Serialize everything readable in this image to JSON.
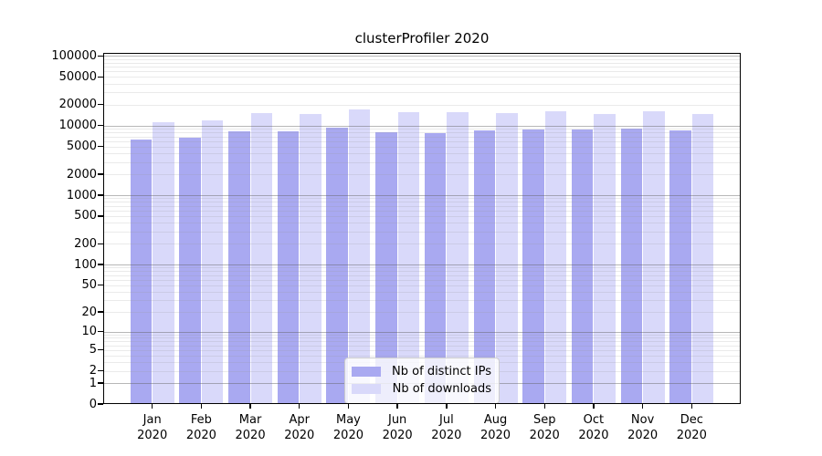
{
  "title": "clusterProfiler 2020",
  "colors": {
    "distinct_ips_bar": "#a9a9f1",
    "downloads_bar": "#d9d9fa",
    "axis": "#000000",
    "legend_border": "#cccccc"
  },
  "legend": {
    "items": [
      {
        "label": "Nb of distinct IPs",
        "color": "#a9a9f1"
      },
      {
        "label": "Nb of downloads",
        "color": "#d9d9fa"
      }
    ]
  },
  "chart_data": {
    "type": "bar",
    "title": "clusterProfiler 2020",
    "categories": [
      "Jan 2020",
      "Feb 2020",
      "Mar 2020",
      "Apr 2020",
      "May 2020",
      "Jun 2020",
      "Jul 2020",
      "Aug 2020",
      "Sep 2020",
      "Oct 2020",
      "Nov 2020",
      "Dec 2020"
    ],
    "x_ticks": [
      {
        "line1": "Jan",
        "line2": "2020"
      },
      {
        "line1": "Feb",
        "line2": "2020"
      },
      {
        "line1": "Mar",
        "line2": "2020"
      },
      {
        "line1": "Apr",
        "line2": "2020"
      },
      {
        "line1": "May",
        "line2": "2020"
      },
      {
        "line1": "Jun",
        "line2": "2020"
      },
      {
        "line1": "Jul",
        "line2": "2020"
      },
      {
        "line1": "Aug",
        "line2": "2020"
      },
      {
        "line1": "Sep",
        "line2": "2020"
      },
      {
        "line1": "Oct",
        "line2": "2020"
      },
      {
        "line1": "Nov",
        "line2": "2020"
      },
      {
        "line1": "Dec",
        "line2": "2020"
      }
    ],
    "series": [
      {
        "name": "Nb of distinct IPs",
        "color": "#a9a9f1",
        "values": [
          6300,
          6600,
          8300,
          8200,
          9400,
          8000,
          7900,
          8400,
          8900,
          8800,
          9000,
          8600
        ]
      },
      {
        "name": "Nb of downloads",
        "color": "#d9d9fa",
        "values": [
          11100,
          12000,
          15000,
          14700,
          17100,
          15700,
          15400,
          15300,
          15900,
          14800,
          16200,
          14700
        ]
      }
    ],
    "xlabel": "",
    "ylabel": "",
    "yscale": "symlog (log10 of 1+value, 0 pinned at baseline)",
    "y_ticks": [
      {
        "label": "0",
        "value": 0
      },
      {
        "label": "1",
        "value": 1
      },
      {
        "label": "2",
        "value": 2
      },
      {
        "label": "5",
        "value": 5
      },
      {
        "label": "10",
        "value": 10
      },
      {
        "label": "20",
        "value": 20
      },
      {
        "label": "50",
        "value": 50
      },
      {
        "label": "100",
        "value": 100
      },
      {
        "label": "200",
        "value": 200
      },
      {
        "label": "500",
        "value": 500
      },
      {
        "label": "1000",
        "value": 1000
      },
      {
        "label": "2000",
        "value": 2000
      },
      {
        "label": "5000",
        "value": 5000
      },
      {
        "label": "10000",
        "value": 10000
      },
      {
        "label": "20000",
        "value": 20000
      },
      {
        "label": "50000",
        "value": 50000
      },
      {
        "label": "100000",
        "value": 100000
      }
    ],
    "ylim": [
      0,
      100000
    ],
    "grid": "horizontal log gridlines, minor (2-9 per decade) light, major (powers of 10) darker",
    "legend_position": "lower center inside plot"
  }
}
